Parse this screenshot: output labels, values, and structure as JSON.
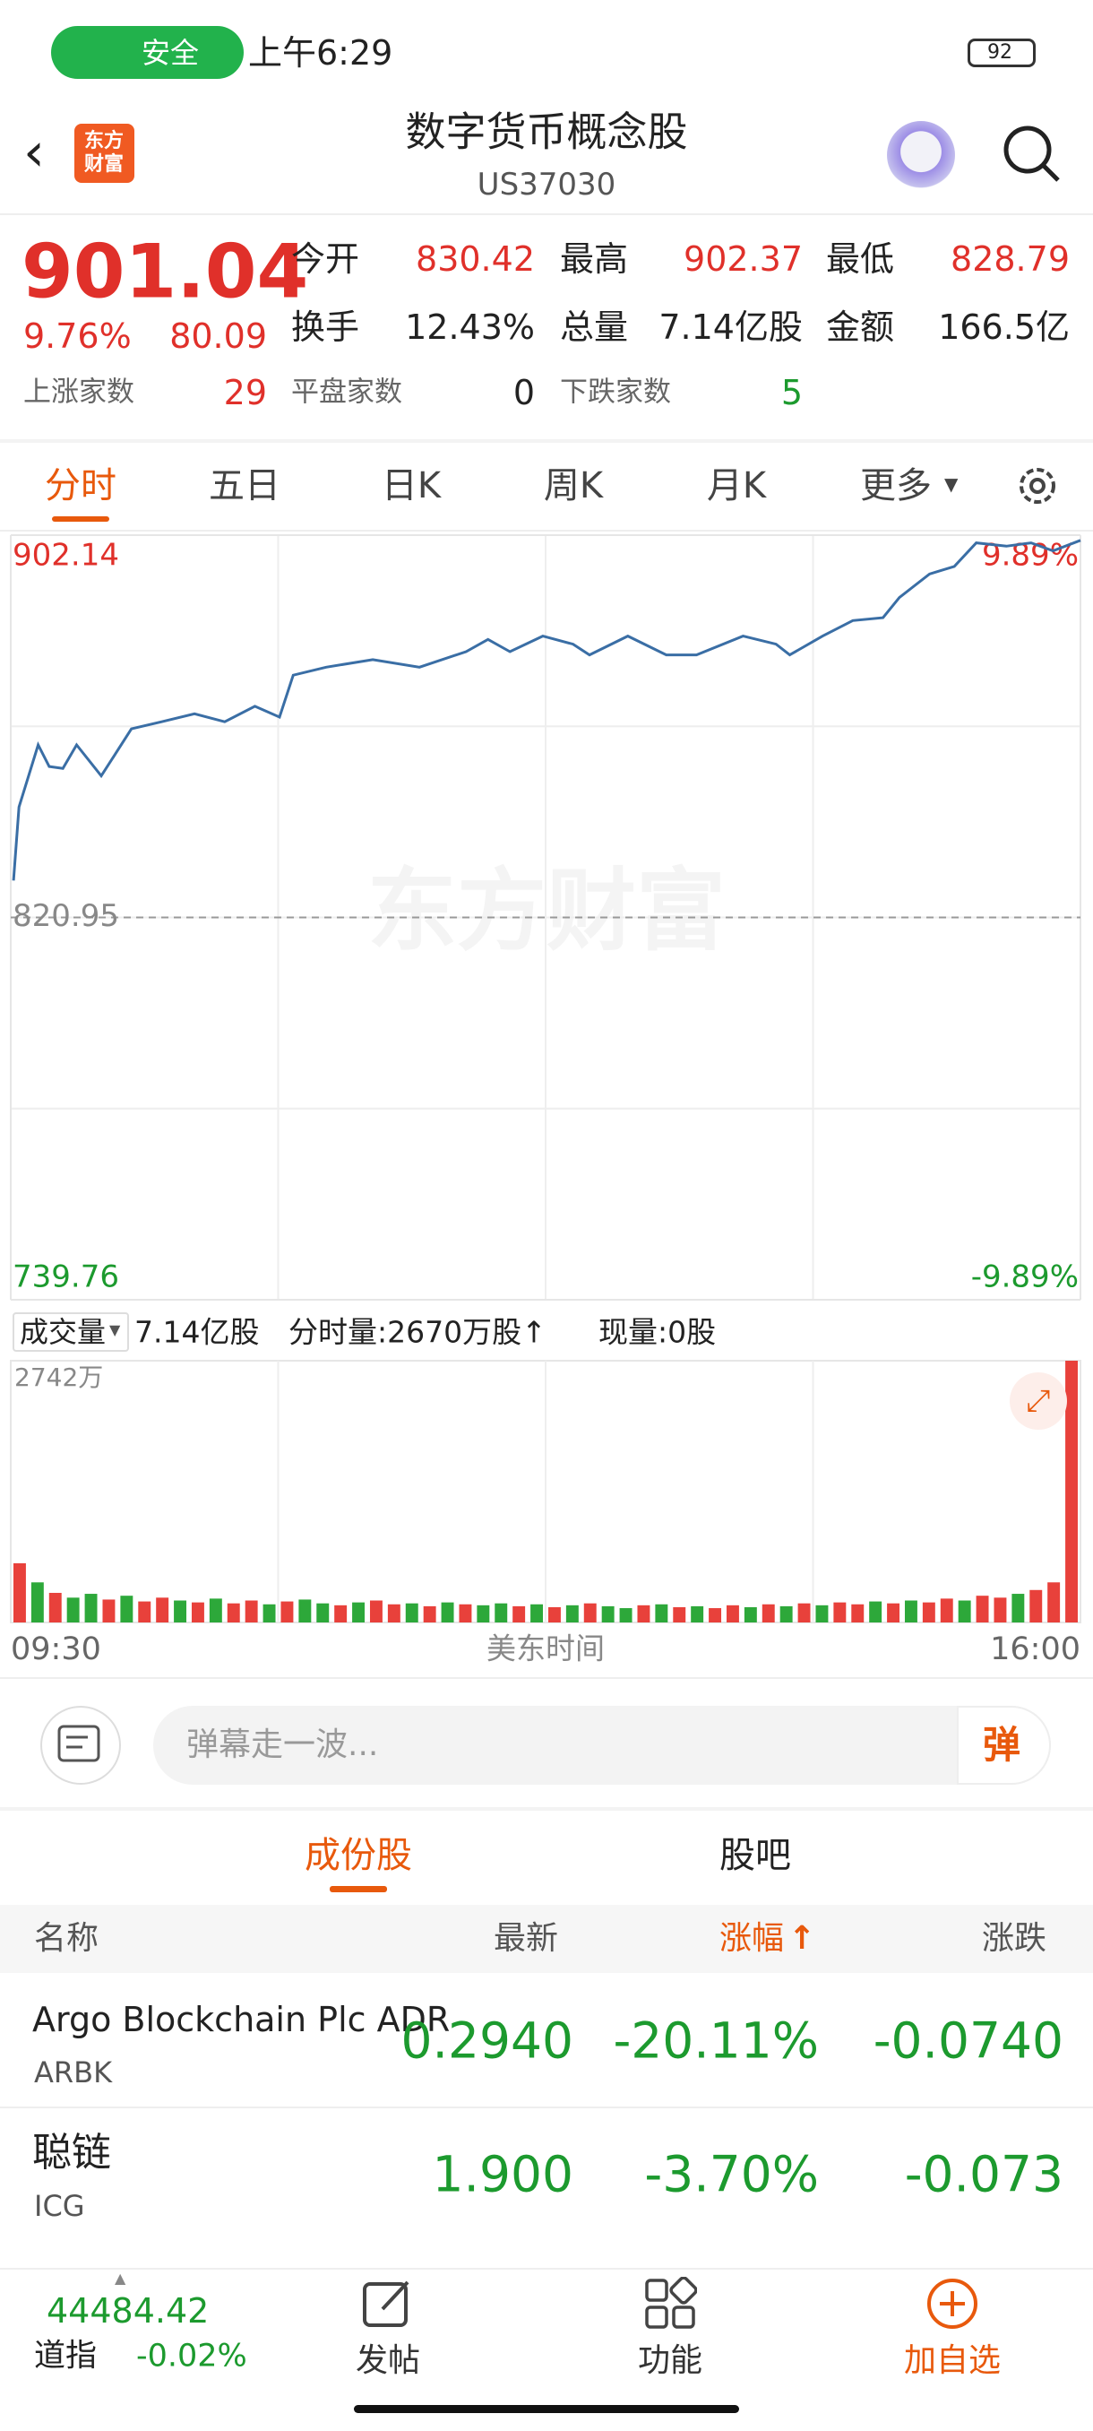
{
  "status_bar": {
    "badge": "安全",
    "time": "上午6:29",
    "battery": "92"
  },
  "header": {
    "title": "数字货币概念股",
    "code": "US37030",
    "logo_lines": [
      "东方",
      "财富"
    ]
  },
  "quote": {
    "price": "901.04",
    "change_pct": "9.76%",
    "change": "80.09",
    "fields": [
      {
        "label": "今开",
        "value": "830.42"
      },
      {
        "label": "最高",
        "value": "902.37"
      },
      {
        "label": "最低",
        "value": "828.79"
      },
      {
        "label": "换手",
        "value": "12.43%"
      },
      {
        "label": "总量",
        "value": "7.14亿股"
      },
      {
        "label": "金额",
        "value": "166.5亿"
      }
    ],
    "breadth": [
      {
        "label": "上涨家数",
        "value": "29"
      },
      {
        "label": "平盘家数",
        "value": "0"
      },
      {
        "label": "下跌家数",
        "value": "5"
      }
    ]
  },
  "period_tabs": [
    "分时",
    "五日",
    "日K",
    "周K",
    "月K",
    "更多"
  ],
  "chart_data": [
    {
      "type": "line",
      "watermark": "东方财富",
      "x": [
        1,
        3,
        10,
        14,
        19,
        24,
        33,
        44,
        55,
        67,
        78,
        89,
        98,
        103,
        115,
        132,
        149,
        166,
        174,
        182,
        194,
        205,
        211,
        225,
        239,
        250,
        267,
        279,
        284,
        296,
        307,
        318,
        324,
        335,
        344,
        352,
        363,
        372,
        380,
        390
      ],
      "series": [
        {
          "color": "#3a6ea5",
          "values": [
            828.8,
            844.4,
            857.6,
            853,
            852.6,
            857.6,
            851,
            861,
            862.5,
            864.2,
            862.5,
            865.8,
            863.5,
            872.4,
            874.1,
            875.7,
            874.1,
            877.4,
            880,
            877.4,
            880.7,
            879,
            876.7,
            880.7,
            876.7,
            876.7,
            880.7,
            879,
            876.7,
            880.7,
            884,
            884.6,
            888.9,
            893.9,
            895.5,
            900.5,
            899.8,
            900.5,
            898.8,
            901.04
          ]
        }
      ],
      "xlim": [
        0,
        390
      ],
      "xticks": [
        {
          "value": 0,
          "label": "09:30"
        },
        {
          "value": 390,
          "label": "16:00"
        }
      ],
      "xlabel": "美东时间",
      "ylim": [
        739.76,
        902.14
      ],
      "yticks": [
        902.14,
        820.95,
        739.76
      ],
      "y2lim": [
        -9.89,
        9.89
      ],
      "y2ticks": [
        {
          "value": 9.89,
          "label": "9.89%"
        },
        {
          "value": -9.89,
          "label": "-9.89%"
        }
      ]
    },
    {
      "type": "bar",
      "title": "成交量",
      "total": "7.14亿股",
      "minute_volume": "分时量:2670万股↑",
      "current_volume": "现量:0股",
      "values": [
        620,
        420,
        310,
        260,
        300,
        240,
        280,
        220,
        260,
        230,
        210,
        250,
        200,
        230,
        190,
        220,
        240,
        200,
        180,
        210,
        230,
        190,
        200,
        170,
        210,
        190,
        180,
        200,
        170,
        190,
        160,
        180,
        200,
        170,
        150,
        180,
        190,
        160,
        170,
        150,
        180,
        160,
        190,
        170,
        200,
        180,
        210,
        190,
        220,
        200,
        230,
        210,
        250,
        230,
        280,
        260,
        300,
        340,
        420,
        2742
      ],
      "colors": [
        "#e8413b",
        "#2da83a",
        "#e8413b",
        "#2da83a",
        "#2da83a",
        "#e8413b",
        "#2da83a",
        "#e8413b",
        "#e8413b",
        "#2da83a",
        "#e8413b",
        "#2da83a",
        "#e8413b",
        "#e8413b",
        "#2da83a",
        "#e8413b",
        "#2da83a",
        "#2da83a",
        "#e8413b",
        "#2da83a",
        "#e8413b",
        "#e8413b",
        "#2da83a",
        "#e8413b",
        "#2da83a",
        "#e8413b",
        "#2da83a",
        "#2da83a",
        "#e8413b",
        "#2da83a",
        "#e8413b",
        "#2da83a",
        "#e8413b",
        "#2da83a",
        "#2da83a",
        "#e8413b",
        "#2da83a",
        "#e8413b",
        "#2da83a",
        "#e8413b",
        "#e8413b",
        "#2da83a",
        "#e8413b",
        "#2da83a",
        "#e8413b",
        "#2da83a",
        "#e8413b",
        "#e8413b",
        "#2da83a",
        "#e8413b",
        "#2da83a",
        "#e8413b",
        "#e8413b",
        "#2da83a",
        "#e8413b",
        "#e8413b",
        "#2da83a",
        "#e8413b",
        "#e8413b",
        "#e8413b"
      ],
      "ylim": [
        0,
        2742
      ],
      "yticks": [
        {
          "value": 2742,
          "label": "2742万"
        }
      ]
    }
  ],
  "comment": {
    "placeholder": "弹幕走一波...",
    "button": "弹"
  },
  "sub_tabs": [
    "成份股",
    "股吧"
  ],
  "table": {
    "columns": [
      "名称",
      "最新",
      "涨幅",
      "涨跌"
    ],
    "rows": [
      {
        "name": "Argo Blockchain Plc ADR",
        "code": "ARBK",
        "cells": [
          "0.2940",
          "-20.11%",
          "-0.0740"
        ]
      },
      {
        "name": "聪链",
        "code": "ICG",
        "cells": [
          "1.900",
          "-3.70%",
          "-0.073"
        ]
      }
    ]
  },
  "bottom_nav": {
    "index_value": "44484.42",
    "index_name": "道指",
    "index_change": "-0.02%",
    "items": [
      "发帖",
      "功能",
      "加自选"
    ]
  }
}
